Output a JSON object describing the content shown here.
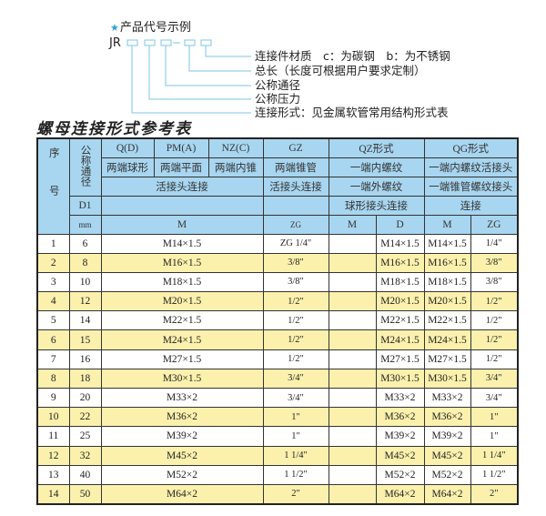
{
  "code_example": {
    "title": "产品代号示例",
    "prefix": "JR",
    "labels": [
      "连接件材质　c：为碳钢　b：为不锈钢",
      "总长（长度可根据用户要求定制）",
      "公称通径",
      "公称压力",
      "连接形式：见金属软管常用结构形式表"
    ]
  },
  "page_title": "螺母连接形式参考表",
  "table": {
    "header": {
      "seq": "序号",
      "dn": "公称通径",
      "d1": "D1",
      "mm": "mm",
      "q": "Q(D)",
      "pm": "PM(A)",
      "nz": "NZ(C)",
      "gz": "GZ",
      "qz": "QZ形式",
      "qg": "QG形式",
      "q_desc": "两端球形",
      "pm_desc": "两端平面",
      "nz_desc": "两端内锥",
      "gz_desc": "两端锥管",
      "qz_desc1": "一端内螺纹",
      "qg_desc1": "一端内螺纹活接头",
      "live_conn": "活接头连接",
      "gz_conn": "活接头连接",
      "qz_desc2": "一端外螺纹",
      "qg_desc2": "一端锥管螺纹接头",
      "qz_desc3": "球形接头连接",
      "qg_desc3": "连接",
      "m": "M",
      "zg": "ZG",
      "qz_m": "M",
      "qz_d": "D",
      "qg_m": "M",
      "qg_zg": "ZG"
    },
    "rows": [
      {
        "no": "1",
        "dn": "6",
        "m": "M14×1.5",
        "zg": "ZG 1/4\"",
        "qz_m": "",
        "qz_d": "M14×1.5",
        "qg_m": "M14×1.5",
        "qg_zg": "1/4\""
      },
      {
        "no": "2",
        "dn": "8",
        "m": "M16×1.5",
        "zg": "3/8\"",
        "qz_m": "",
        "qz_d": "M16×1.5",
        "qg_m": "M16×1.5",
        "qg_zg": "3/8\""
      },
      {
        "no": "3",
        "dn": "10",
        "m": "M18×1.5",
        "zg": "3/8\"",
        "qz_m": "",
        "qz_d": "M18×1.5",
        "qg_m": "M18×1.5",
        "qg_zg": "3/8\""
      },
      {
        "no": "4",
        "dn": "12",
        "m": "M20×1.5",
        "zg": "1/2\"",
        "qz_m": "",
        "qz_d": "M20×1.5",
        "qg_m": "M20×1.5",
        "qg_zg": "1/2\""
      },
      {
        "no": "5",
        "dn": "14",
        "m": "M22×1.5",
        "zg": "1/2\"",
        "qz_m": "",
        "qz_d": "M22×1.5",
        "qg_m": "M22×1.5",
        "qg_zg": "1/2\""
      },
      {
        "no": "6",
        "dn": "15",
        "m": "M24×1.5",
        "zg": "1/2\"",
        "qz_m": "",
        "qz_d": "M24×1.5",
        "qg_m": "M24×1.5",
        "qg_zg": "1/2\""
      },
      {
        "no": "7",
        "dn": "16",
        "m": "M27×1.5",
        "zg": "1/2\"",
        "qz_m": "",
        "qz_d": "M27×1.5",
        "qg_m": "M27×1.5",
        "qg_zg": "1/2\""
      },
      {
        "no": "8",
        "dn": "18",
        "m": "M30×1.5",
        "zg": "3/4\"",
        "qz_m": "",
        "qz_d": "M30×1.5",
        "qg_m": "M30×1.5",
        "qg_zg": "3/4\""
      },
      {
        "no": "9",
        "dn": "20",
        "m": "M33×2",
        "zg": "3/4\"",
        "qz_m": "",
        "qz_d": "M33×2",
        "qg_m": "M33×2",
        "qg_zg": "3/4\""
      },
      {
        "no": "10",
        "dn": "22",
        "m": "M36×2",
        "zg": "1\"",
        "qz_m": "",
        "qz_d": "M36×2",
        "qg_m": "M36×2",
        "qg_zg": "1\""
      },
      {
        "no": "11",
        "dn": "25",
        "m": "M39×2",
        "zg": "1\"",
        "qz_m": "",
        "qz_d": "M39×2",
        "qg_m": "M39×2",
        "qg_zg": "1\""
      },
      {
        "no": "12",
        "dn": "32",
        "m": "M45×2",
        "zg": "1 1/4\"",
        "qz_m": "",
        "qz_d": "M45×2",
        "qg_m": "M45×2",
        "qg_zg": "1 1/4\""
      },
      {
        "no": "13",
        "dn": "40",
        "m": "M52×2",
        "zg": "1 1/2\"",
        "qz_m": "",
        "qz_d": "M52×2",
        "qg_m": "M52×2",
        "qg_zg": "1 1/2\""
      },
      {
        "no": "14",
        "dn": "50",
        "m": "M64×2",
        "zg": "2\"",
        "qz_m": "",
        "qz_d": "M64×2",
        "qg_m": "M64×2",
        "qg_zg": "2\""
      }
    ]
  },
  "colors": {
    "header_bg": "#a8d6f0",
    "stripe": "#fbf1ad",
    "accent": "#2a9fd6"
  }
}
